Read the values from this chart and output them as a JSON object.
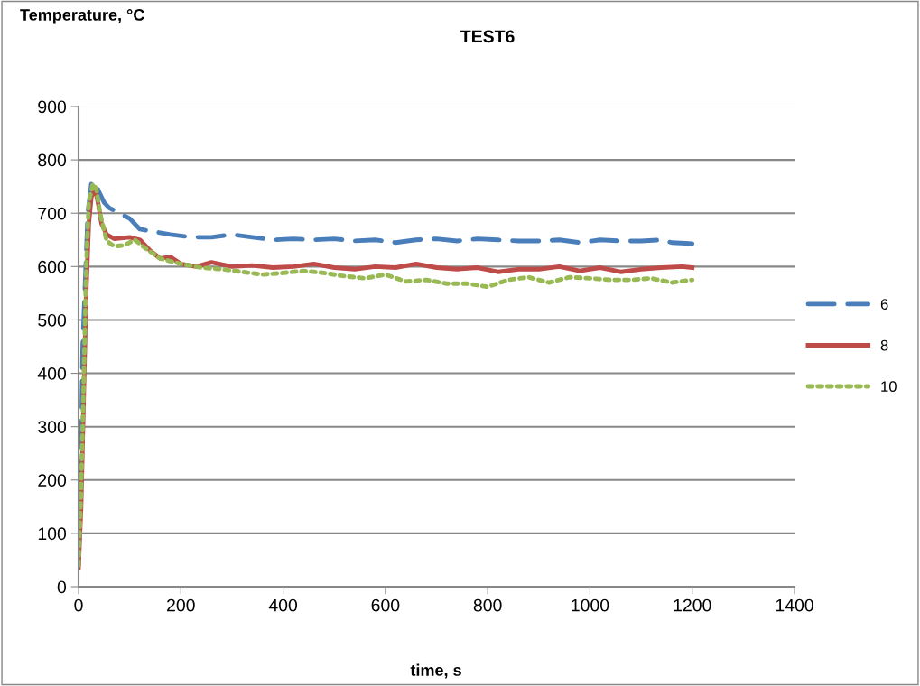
{
  "chart_data": {
    "type": "line",
    "title": "TEST6",
    "ylabel": "Temperature, °C",
    "xlabel": "time, s",
    "xlim": [
      0,
      1400
    ],
    "xticks": [
      0,
      200,
      400,
      600,
      800,
      1000,
      1200,
      1400
    ],
    "ylim": [
      0,
      900
    ],
    "yticks": [
      0,
      100,
      200,
      300,
      400,
      500,
      600,
      700,
      800,
      900
    ],
    "grid": "y",
    "legend": "right",
    "marker": "none",
    "series": [
      {
        "name": "6",
        "color": "#4a7ebb",
        "line_style": "dashed",
        "x": [
          0,
          5,
          8,
          12,
          18,
          25,
          32,
          40,
          50,
          60,
          80,
          100,
          120,
          150,
          180,
          220,
          260,
          300,
          340,
          380,
          420,
          460,
          500,
          540,
          580,
          620,
          660,
          700,
          740,
          780,
          820,
          860,
          900,
          940,
          980,
          1020,
          1060,
          1100,
          1140,
          1160,
          1200
        ],
        "values": [
          40,
          250,
          450,
          550,
          700,
          755,
          760,
          740,
          720,
          710,
          700,
          690,
          670,
          665,
          660,
          655,
          655,
          660,
          655,
          650,
          652,
          650,
          652,
          648,
          650,
          645,
          650,
          652,
          648,
          652,
          650,
          648,
          648,
          650,
          645,
          650,
          648,
          648,
          650,
          645,
          643
        ]
      },
      {
        "name": "8",
        "color": "#be4b48",
        "line_style": "solid",
        "x": [
          0,
          5,
          10,
          15,
          20,
          25,
          32,
          38,
          45,
          55,
          70,
          100,
          120,
          140,
          160,
          180,
          200,
          230,
          260,
          300,
          340,
          380,
          420,
          460,
          500,
          540,
          580,
          620,
          660,
          700,
          740,
          780,
          820,
          860,
          900,
          940,
          980,
          1020,
          1060,
          1100,
          1140,
          1180,
          1200
        ],
        "values": [
          35,
          150,
          350,
          550,
          680,
          730,
          748,
          720,
          680,
          660,
          652,
          655,
          650,
          630,
          615,
          618,
          605,
          600,
          608,
          600,
          602,
          598,
          600,
          605,
          598,
          595,
          600,
          598,
          605,
          598,
          595,
          598,
          590,
          595,
          595,
          600,
          592,
          598,
          590,
          595,
          598,
          600,
          598
        ]
      },
      {
        "name": "10",
        "color": "#98b954",
        "line_style": "dotted",
        "x": [
          0,
          5,
          10,
          15,
          20,
          28,
          35,
          42,
          55,
          70,
          90,
          110,
          130,
          160,
          200,
          240,
          280,
          320,
          360,
          400,
          440,
          480,
          520,
          560,
          600,
          640,
          680,
          720,
          760,
          800,
          840,
          880,
          920,
          960,
          1000,
          1040,
          1080,
          1120,
          1160,
          1200
        ],
        "values": [
          40,
          180,
          380,
          600,
          720,
          755,
          745,
          700,
          648,
          638,
          640,
          650,
          635,
          615,
          605,
          598,
          595,
          590,
          585,
          588,
          592,
          588,
          582,
          578,
          585,
          572,
          575,
          568,
          568,
          562,
          575,
          580,
          570,
          580,
          578,
          575,
          575,
          578,
          570,
          575
        ]
      }
    ]
  }
}
